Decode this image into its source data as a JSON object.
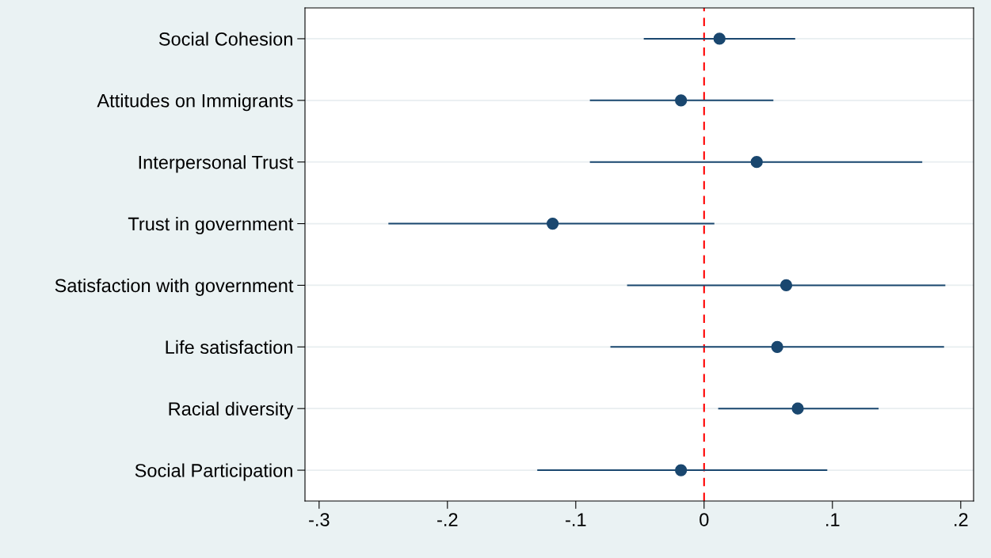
{
  "chart_data": {
    "type": "scatter",
    "orientation": "horizontal",
    "categories": [
      "Social Cohesion",
      "Attitudes on Immigrants",
      "Interpersonal Trust",
      "Trust in government",
      "Satisfaction with government",
      "Life satisfaction",
      "Racial diversity",
      "Social Participation"
    ],
    "series": [
      {
        "color": "#1a476f",
        "values": [
          0.012,
          -0.018,
          0.041,
          -0.118,
          0.064,
          0.057,
          0.073,
          -0.018
        ],
        "errors": [
          [
            -0.047,
            0.071
          ],
          [
            -0.089,
            0.054
          ],
          [
            -0.089,
            0.17
          ],
          [
            -0.246,
            0.008
          ],
          [
            -0.06,
            0.188
          ],
          [
            -0.073,
            0.187
          ],
          [
            0.011,
            0.136
          ],
          [
            -0.13,
            0.096
          ]
        ]
      }
    ],
    "xlim": [
      -0.311,
      0.21
    ],
    "xticks": [
      {
        "value": -0.3,
        "label": "-.3"
      },
      {
        "value": -0.2,
        "label": "-.2"
      },
      {
        "value": -0.1,
        "label": "-.1"
      },
      0,
      {
        "value": 0.1,
        "label": ".1"
      },
      {
        "value": 0.2,
        "label": ".2"
      }
    ],
    "ref_lines": [
      {
        "axis": "x",
        "value": 0,
        "color": "#ff0000",
        "line_style": "dashed"
      }
    ],
    "grid": "y",
    "marker": "circle",
    "legend": false
  }
}
